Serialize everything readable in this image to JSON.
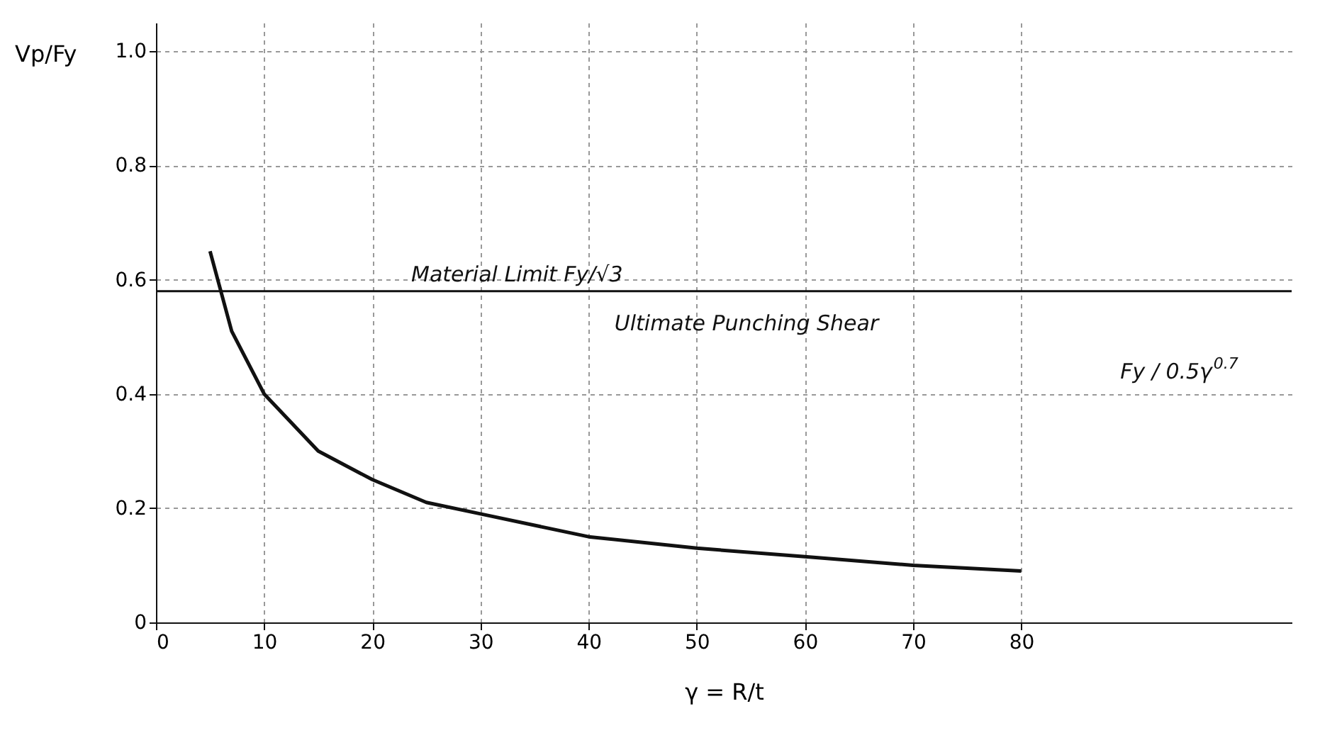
{
  "chart_data": {
    "type": "line",
    "xlabel": "γ = R/t",
    "ylabel": "Vp/Fy",
    "x": [
      5,
      7,
      10,
      15,
      20,
      25,
      30,
      40,
      50,
      60,
      70,
      80
    ],
    "series": [
      {
        "color": "#111111",
        "values": [
          0.65,
          0.51,
          0.4,
          0.3,
          0.25,
          0.21,
          0.19,
          0.15,
          0.13,
          0.115,
          0.1,
          0.09
        ]
      }
    ],
    "xlim": [
      0,
      105
    ],
    "ylim": [
      0,
      1.05
    ],
    "xticks": [
      0,
      10,
      20,
      30,
      40,
      50,
      60,
      70,
      80
    ],
    "yticks": [
      0,
      0.2,
      0.4,
      0.6,
      0.8,
      {
        "value": 1,
        "label": "1.0"
      }
    ],
    "grid": true,
    "marker": "none",
    "line_style": "solid",
    "ref_lines": [
      {
        "axis": "y",
        "value": 0.58,
        "label": "Material Limit Fy/√3",
        "color": "#111111"
      }
    ],
    "annotations": [
      "Ultimate Punching Shear",
      "Fy / 0.5γ$^{0.7}$"
    ]
  }
}
